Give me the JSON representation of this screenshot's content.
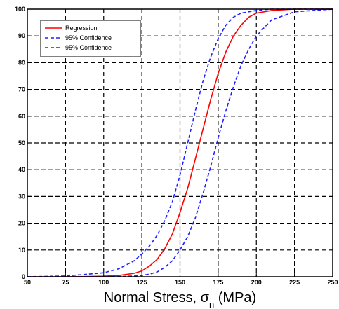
{
  "chart_data": {
    "type": "line",
    "title": "",
    "xlabel": "Normal Stress, σ",
    "xlabel_sub": "n",
    "xlabel_unit": " (MPa)",
    "ylabel": "",
    "xlim": [
      50,
      250
    ],
    "ylim": [
      0,
      100
    ],
    "xticks": [
      "50",
      "75",
      "100",
      "125",
      "150",
      "175",
      "200",
      "225",
      "250"
    ],
    "yticks": [
      "0",
      "10",
      "20",
      "30",
      "40",
      "50",
      "60",
      "70",
      "80",
      "90",
      "100"
    ],
    "grid": true,
    "legend_position": "top-left",
    "series": [
      {
        "name": "Regression",
        "color": "#ff0000",
        "dash": "solid",
        "x": [
          50,
          75,
          100,
          110,
          120,
          125,
          130,
          135,
          140,
          145,
          150,
          155,
          160,
          165,
          170,
          175,
          180,
          185,
          190,
          195,
          200,
          210,
          225,
          250
        ],
        "y": [
          0,
          0,
          0.2,
          0.5,
          1.3,
          2.2,
          4,
          6.5,
          10.5,
          16,
          24,
          33,
          44,
          55,
          66,
          76,
          84,
          90,
          94,
          97,
          98.5,
          99.5,
          100,
          100
        ]
      },
      {
        "name": "95% Confidence",
        "color": "#2020ff",
        "dash": "dashed",
        "x": [
          50,
          75,
          100,
          110,
          120,
          125,
          130,
          135,
          140,
          145,
          150,
          155,
          160,
          165,
          170,
          175,
          180,
          185,
          190,
          200,
          210,
          225,
          250
        ],
        "y": [
          0,
          0.3,
          1.5,
          3,
          6,
          8.5,
          11.5,
          15.5,
          21,
          28,
          38,
          50,
          62,
          73,
          82,
          89,
          94,
          97,
          98.5,
          99.5,
          100,
          100,
          100
        ]
      },
      {
        "name": "95% Confidence",
        "color": "#2020ff",
        "dash": "dashed",
        "x": [
          50,
          75,
          100,
          110,
          120,
          125,
          130,
          135,
          140,
          145,
          150,
          155,
          160,
          165,
          170,
          175,
          180,
          185,
          190,
          195,
          200,
          210,
          225,
          250
        ],
        "y": [
          0,
          0,
          0,
          0.1,
          0.3,
          0.5,
          1,
          1.8,
          3.5,
          6,
          10,
          15,
          22,
          31,
          41,
          52,
          62,
          71,
          79,
          85,
          90,
          96,
          99,
          100
        ]
      }
    ]
  }
}
